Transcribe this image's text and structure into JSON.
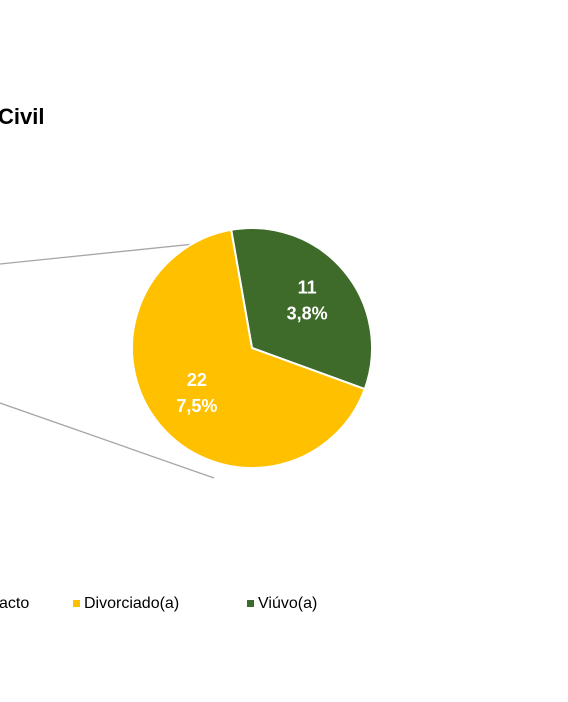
{
  "chart_data": {
    "type": "pie",
    "title": "Civil",
    "categories": [
      "Divorciado(a)",
      "Viúvo(a)"
    ],
    "values": [
      22,
      11
    ],
    "percentages": [
      7.5,
      3.8
    ],
    "percentage_labels": [
      "7,5%",
      "3,8%"
    ],
    "colors": [
      "#ffc000",
      "#3e6b2a"
    ],
    "legend_partial_label": "acto"
  }
}
